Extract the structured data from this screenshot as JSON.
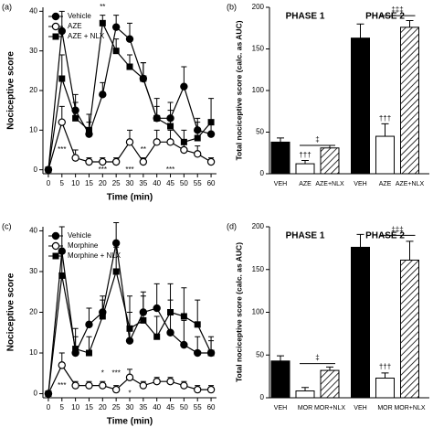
{
  "chart_data": [
    {
      "type": "line",
      "panel": "(a)",
      "xlabel": "Time (min)",
      "ylabel": "Nociceptive score",
      "x": [
        0,
        5,
        10,
        15,
        20,
        25,
        30,
        35,
        40,
        45,
        50,
        55,
        60
      ],
      "xlim": [
        -2,
        62
      ],
      "xticks": [
        0,
        5,
        10,
        15,
        20,
        25,
        30,
        35,
        40,
        45,
        50,
        55,
        60
      ],
      "ylim": [
        -1,
        41
      ],
      "yticks": [
        0,
        10,
        20,
        30,
        40
      ],
      "legend": "upper left",
      "series": [
        {
          "name": "Vehicle",
          "marker": "filled-circle",
          "color": "#000000",
          "values": [
            0,
            35,
            15,
            9,
            19,
            36,
            33,
            23,
            13,
            13,
            21,
            10,
            9
          ],
          "errors": [
            0,
            5,
            4,
            3,
            3,
            3,
            4,
            4,
            3,
            4,
            5,
            3,
            3
          ]
        },
        {
          "name": "AZE",
          "marker": "open-circle",
          "color": "#000000",
          "values": [
            0,
            12,
            3,
            2,
            2,
            2,
            7,
            2,
            7,
            7,
            5,
            4,
            2
          ],
          "errors": [
            0,
            4,
            2,
            1,
            1,
            1,
            3,
            1,
            3,
            3,
            2,
            2,
            1
          ]
        },
        {
          "name": "AZE + NLX",
          "marker": "filled-square",
          "color": "#000000",
          "values": [
            0,
            23,
            13,
            10,
            37,
            30,
            26,
            23,
            13,
            11,
            7,
            8,
            12
          ],
          "errors": [
            0,
            6,
            4,
            4,
            2,
            3,
            3,
            4,
            5,
            4,
            3,
            4,
            6
          ]
        }
      ],
      "annotations": [
        {
          "text": "***",
          "x": 5,
          "y": 5
        },
        {
          "text": "**",
          "x": 20,
          "y": 41
        },
        {
          "text": "***",
          "x": 20,
          "y": 0
        },
        {
          "text": "***",
          "x": 30,
          "y": 0
        },
        {
          "text": "**",
          "x": 35,
          "y": 5
        },
        {
          "text": "***",
          "x": 45,
          "y": 0
        }
      ]
    },
    {
      "type": "bar",
      "panel": "(b)",
      "ylabel": "Total nociceptive score (calc. as AUC)",
      "ylim": [
        0,
        200
      ],
      "yticks": [
        0,
        50,
        100,
        150,
        200
      ],
      "styles": [
        "solid",
        "open",
        "hatched"
      ],
      "groups": [
        {
          "name": "PHASE 1",
          "categories": [
            "VEH",
            "AZE",
            "AZE+NLX"
          ],
          "values": [
            38,
            12,
            31
          ],
          "errors": [
            5,
            4,
            3
          ],
          "annotations": [
            {
              "text": "†††",
              "category": 1,
              "y": 22
            },
            {
              "text": "‡",
              "from": 1,
              "to": 2,
              "y": 34
            }
          ]
        },
        {
          "name": "PHASE 2",
          "categories": [
            "VEH",
            "AZE",
            "AZE+NLX"
          ],
          "values": [
            163,
            45,
            176
          ],
          "errors": [
            17,
            15,
            8
          ],
          "annotations": [
            {
              "text": "†††",
              "category": 1,
              "y": 66
            },
            {
              "text": "‡‡‡",
              "from": 1,
              "to": 2,
              "y": 190
            }
          ]
        }
      ]
    },
    {
      "type": "line",
      "panel": "(c)",
      "xlabel": "Time (min)",
      "ylabel": "Nociceptive score",
      "x": [
        0,
        5,
        10,
        15,
        20,
        25,
        30,
        35,
        40,
        45,
        50,
        55,
        60
      ],
      "xlim": [
        -2,
        62
      ],
      "xticks": [
        0,
        5,
        10,
        15,
        20,
        25,
        30,
        35,
        40,
        45,
        50,
        55,
        60
      ],
      "ylim": [
        -1,
        41
      ],
      "yticks": [
        0,
        10,
        20,
        30,
        40
      ],
      "legend": "upper left",
      "series": [
        {
          "name": "Vehicle",
          "marker": "filled-circle",
          "color": "#000000",
          "values": [
            0,
            35,
            10,
            17,
            20,
            37,
            13,
            20,
            21,
            15,
            12,
            10,
            10
          ],
          "errors": [
            0,
            6,
            4,
            4,
            4,
            5,
            7,
            5,
            6,
            8,
            6,
            4,
            3
          ]
        },
        {
          "name": "Morphine",
          "marker": "open-circle",
          "color": "#000000",
          "values": [
            0,
            7,
            2,
            2,
            2,
            1,
            4,
            2,
            3,
            3,
            2,
            1,
            1
          ],
          "errors": [
            0,
            3,
            1,
            1,
            1,
            1,
            2,
            1,
            1,
            1,
            1,
            1,
            1
          ]
        },
        {
          "name": "Morphine + NLX",
          "marker": "filled-square",
          "color": "#000000",
          "values": [
            0,
            29,
            11,
            10,
            19,
            30,
            16,
            18,
            14,
            20,
            19,
            17,
            10
          ],
          "errors": [
            0,
            6,
            5,
            4,
            4,
            6,
            8,
            6,
            5,
            7,
            7,
            6,
            4
          ]
        }
      ],
      "annotations": [
        {
          "text": "***",
          "x": 5,
          "y": 2
        },
        {
          "text": "*",
          "x": 20,
          "y": 5
        },
        {
          "text": "***",
          "x": 25,
          "y": 5
        },
        {
          "text": "*",
          "x": 30,
          "y": 0
        }
      ]
    },
    {
      "type": "bar",
      "panel": "(d)",
      "ylabel": "Total nociceptive score (calc. as AUC)",
      "ylim": [
        0,
        200
      ],
      "yticks": [
        0,
        50,
        100,
        150,
        200
      ],
      "styles": [
        "solid",
        "open",
        "hatched"
      ],
      "groups": [
        {
          "name": "PHASE 1",
          "categories": [
            "VEH",
            "MOR",
            "MOR+NLX"
          ],
          "values": [
            43,
            8,
            32
          ],
          "errors": [
            6,
            4,
            4
          ],
          "annotations": [
            {
              "text": "‡",
              "from": 1,
              "to": 2,
              "y": 40
            }
          ]
        },
        {
          "name": "PHASE 2",
          "categories": [
            "VEH",
            "MOR",
            "MOR+NLX"
          ],
          "values": [
            176,
            23,
            161
          ],
          "errors": [
            15,
            6,
            22
          ],
          "annotations": [
            {
              "text": "†††",
              "category": 1,
              "y": 36
            },
            {
              "text": "‡‡‡",
              "from": 1,
              "to": 2,
              "y": 190
            }
          ]
        }
      ]
    }
  ]
}
